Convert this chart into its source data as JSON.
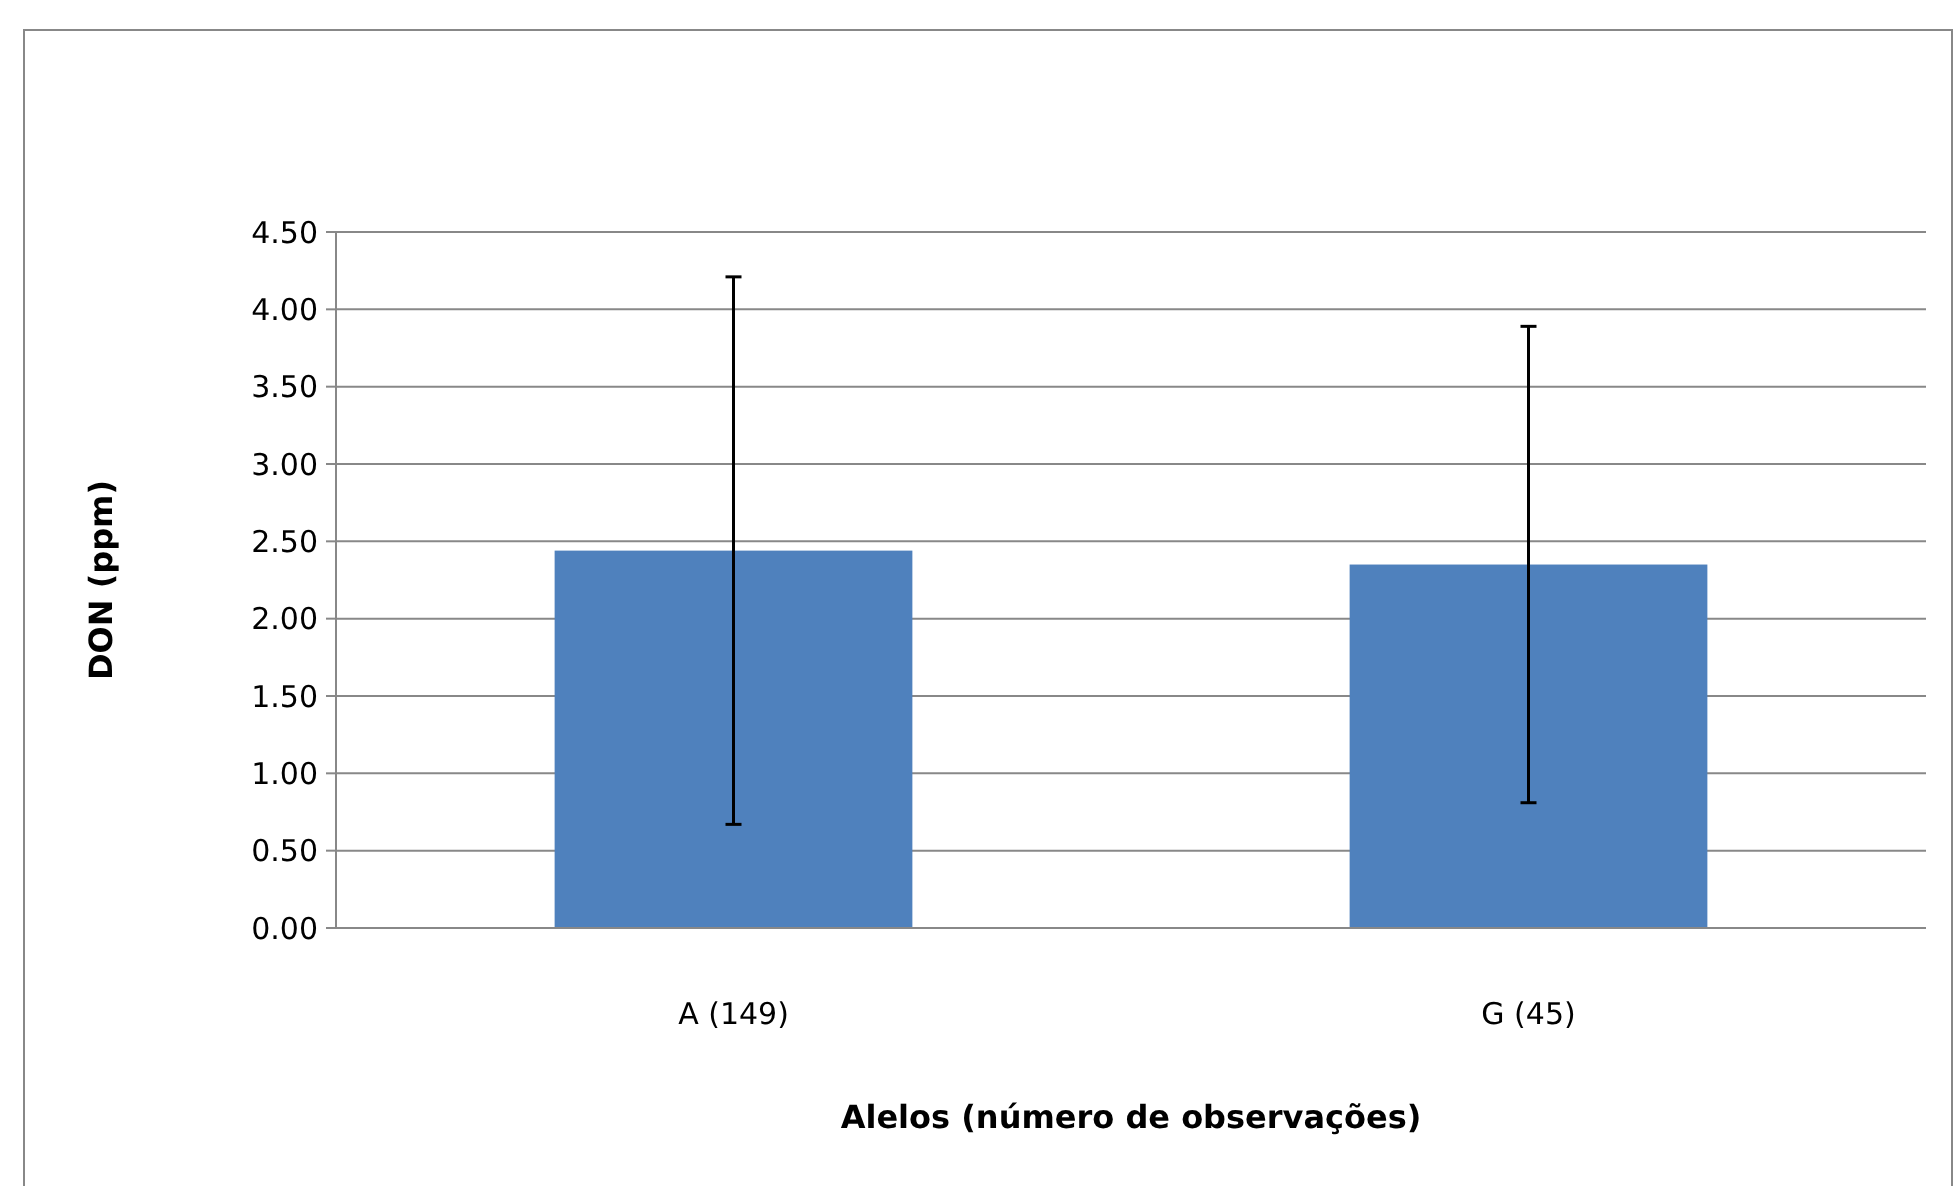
{
  "chart_data": {
    "type": "bar",
    "xlabel": "Alelos (número de observações)",
    "ylabel": "DON (ppm)",
    "categories": [
      "A (149)",
      "G (45)"
    ],
    "values": [
      2.44,
      2.35
    ],
    "errors": [
      1.77,
      1.54
    ],
    "color": "#4f81bd",
    "ylim": [
      0,
      4.5
    ],
    "yticks": [
      {
        "value": 0,
        "label": "0.00"
      },
      {
        "value": 0.5,
        "label": "0.50"
      },
      {
        "value": 1,
        "label": "1.00"
      },
      {
        "value": 1.5,
        "label": "1.50"
      },
      {
        "value": 2,
        "label": "2.00"
      },
      {
        "value": 2.5,
        "label": "2.50"
      },
      {
        "value": 3,
        "label": "3.00"
      },
      {
        "value": 3.5,
        "label": "3.50"
      },
      {
        "value": 4,
        "label": "4.00"
      },
      {
        "value": 4.5,
        "label": "4.50"
      }
    ],
    "grid": "y"
  }
}
